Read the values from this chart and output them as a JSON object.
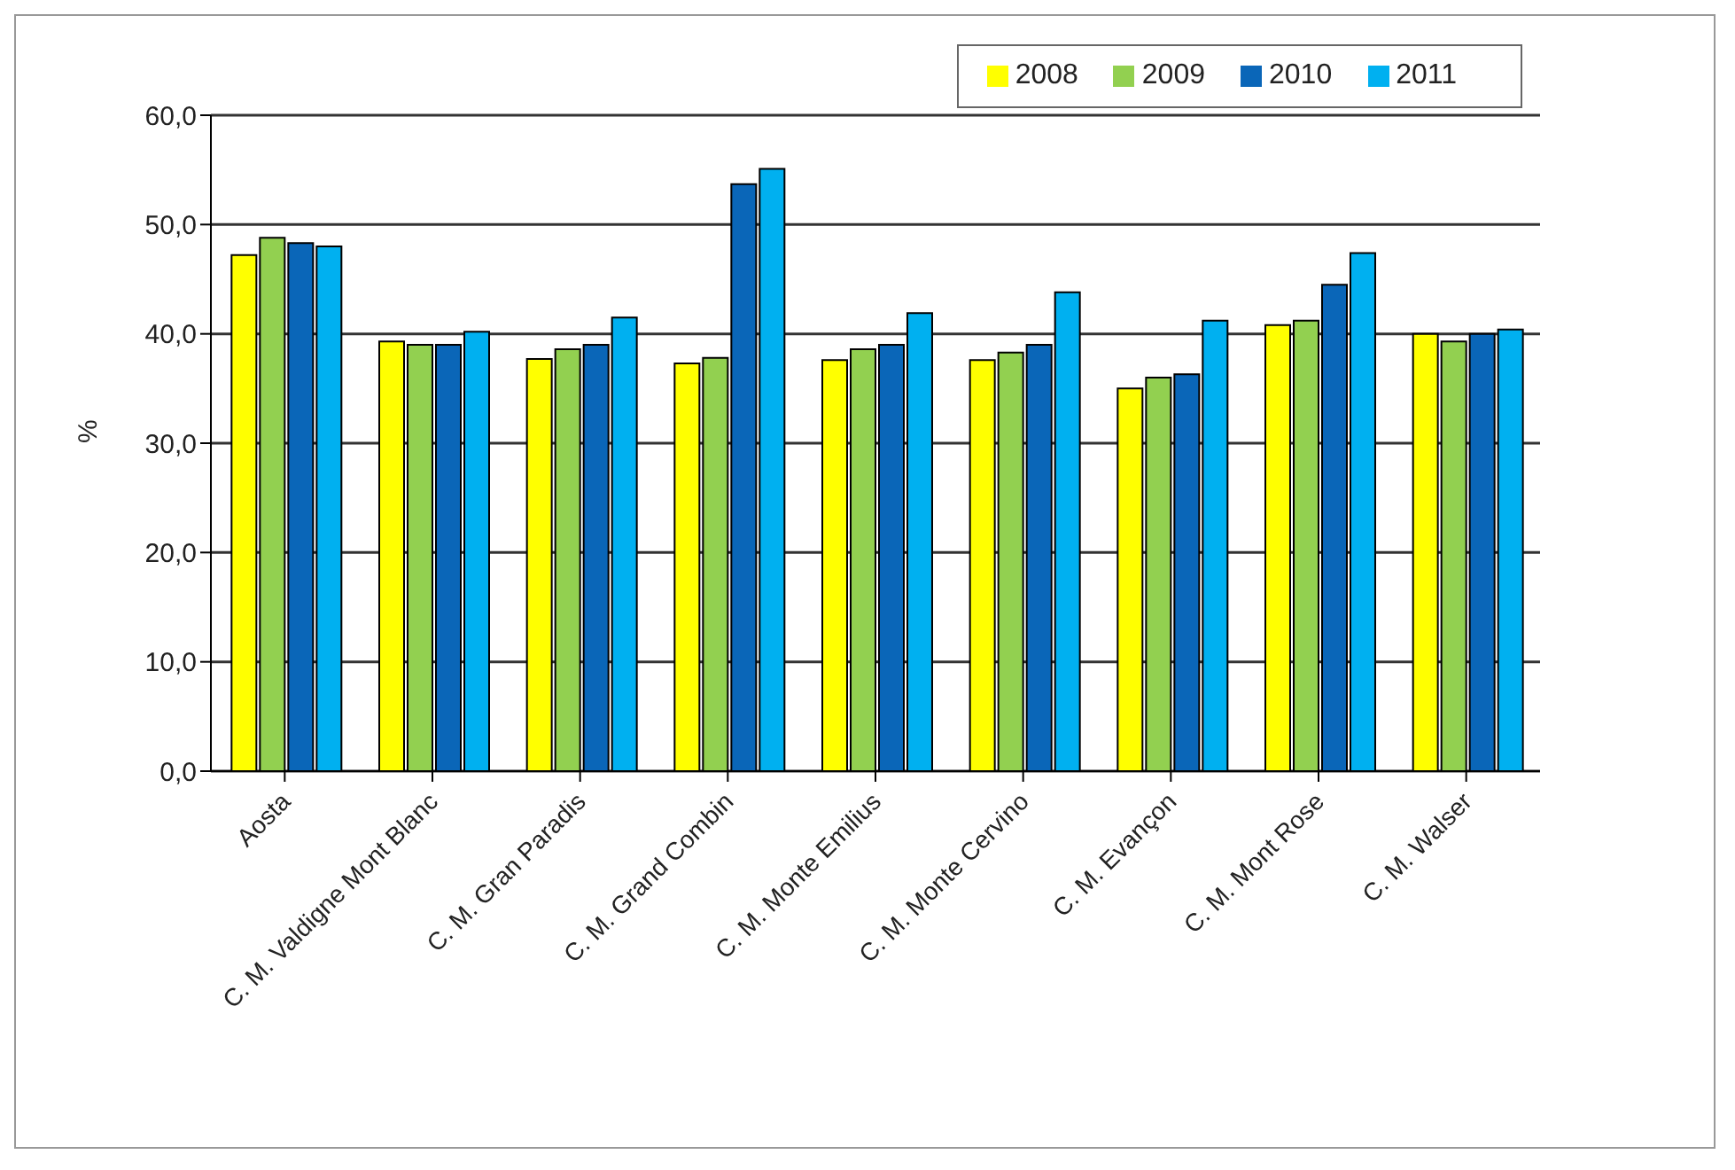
{
  "chart_data": {
    "type": "bar",
    "ylabel": "%",
    "categories": [
      "Aosta",
      "C. M. Valdigne Mont Blanc",
      "C. M. Gran Paradis",
      "C. M. Grand Combin",
      "C. M. Monte Emilius",
      "C. M. Monte Cervino",
      "C. M. Evançon",
      "C. M. Mont Rose",
      "C. M. Walser"
    ],
    "series": [
      {
        "name": "2008",
        "color": "#ffff00",
        "values": [
          47.2,
          39.3,
          37.7,
          37.3,
          37.6,
          37.6,
          35.0,
          40.8,
          40.0
        ]
      },
      {
        "name": "2009",
        "color": "#92d050",
        "values": [
          48.8,
          39.0,
          38.6,
          37.8,
          38.6,
          38.3,
          36.0,
          41.2,
          39.3
        ]
      },
      {
        "name": "2010",
        "color": "#0a66b8",
        "values": [
          48.3,
          39.0,
          39.0,
          53.7,
          39.0,
          39.0,
          36.3,
          44.5,
          40.0
        ]
      },
      {
        "name": "2011",
        "color": "#00b0f0",
        "values": [
          48.0,
          40.2,
          41.5,
          55.1,
          41.9,
          43.8,
          41.2,
          47.4,
          40.4
        ]
      }
    ],
    "ylim": [
      0,
      60
    ],
    "yticks": [
      {
        "value": 0,
        "label": "0,0"
      },
      {
        "value": 10,
        "label": "10,0"
      },
      {
        "value": 20,
        "label": "20,0"
      },
      {
        "value": 30,
        "label": "30,0"
      },
      {
        "value": 40,
        "label": "40,0"
      },
      {
        "value": 50,
        "label": "50,0"
      },
      {
        "value": 60,
        "label": "60,0"
      }
    ],
    "grid": "y",
    "legend": "top right"
  }
}
